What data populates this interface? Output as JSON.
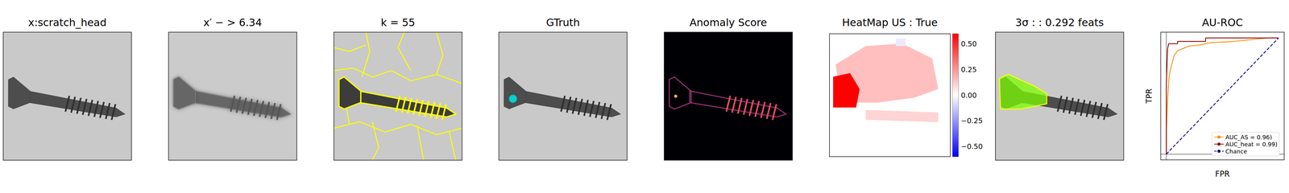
{
  "panels": [
    {
      "title": "x:scratch_head"
    },
    {
      "title": "x′ − > 6.34"
    },
    {
      "title": "k = 55"
    },
    {
      "title": "GTruth"
    },
    {
      "title": "Anomaly Score"
    },
    {
      "title": "HeatMap US : True",
      "color_range": [
        -0.6,
        0.6
      ],
      "color_ticks": [
        {
          "value": -0.5,
          "label": "−0.50"
        },
        {
          "value": -0.25,
          "label": "−0.25"
        },
        {
          "value": 0,
          "label": "0.00"
        },
        {
          "value": 0.25,
          "label": "0.25"
        },
        {
          "value": 0.5,
          "label": "0.50"
        }
      ],
      "regions": [
        {
          "score": 0.15
        },
        {
          "score": 0.6
        },
        {
          "score": 0.1
        },
        {
          "score": -0.05
        }
      ]
    },
    {
      "title": "3σ : : 0.292 feats"
    }
  ],
  "chart_data": {
    "type": "line",
    "title": "AU-ROC",
    "xlabel": "FPR",
    "ylabel": "TPR",
    "xlim": [
      -0.05,
      1.05
    ],
    "ylim": [
      -0.05,
      1.05
    ],
    "tick_labels": false,
    "grid": false,
    "legend": "lower right",
    "series": [
      {
        "name": "AUC_AS = 0.96)",
        "color": "#ff8c00",
        "line_style": "solid",
        "x": [
          0,
          0,
          0.01,
          0.02,
          0.03,
          0.05,
          0.07,
          0.1,
          0.15,
          0.2,
          0.3,
          0.4,
          0.6,
          0.9,
          1
        ],
        "values": [
          0,
          0.2,
          0.45,
          0.62,
          0.7,
          0.78,
          0.85,
          0.89,
          0.91,
          0.93,
          0.94,
          0.96,
          0.97,
          1,
          1
        ]
      },
      {
        "name": "AUC_heat = 0.99)",
        "color": "#8b0000",
        "line_style": "solid",
        "x": [
          0,
          0,
          0.01,
          0.02,
          0.1,
          0.1,
          0.35,
          0.35,
          1
        ],
        "values": [
          0,
          0.6,
          0.9,
          0.95,
          0.95,
          0.97,
          0.97,
          1,
          1
        ]
      },
      {
        "name": "Chance",
        "color": "#000080",
        "line_style": "dashed",
        "x": [
          0,
          1
        ],
        "values": [
          0,
          1
        ]
      }
    ]
  }
}
